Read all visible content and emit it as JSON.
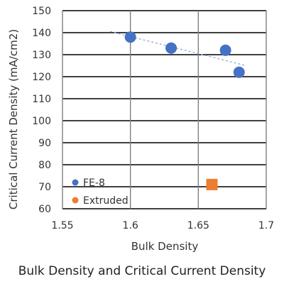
{
  "caption": "Bulk Density and Critical Current Density",
  "chart_data": {
    "type": "scatter",
    "xlabel": "Bulk Density",
    "ylabel": "Critical Current Density (mA/cm2)",
    "xlim": [
      1.55,
      1.7
    ],
    "ylim": [
      60,
      150
    ],
    "x_ticks": [
      "1.55",
      "1.6",
      "1.65",
      "1.7"
    ],
    "y_ticks": [
      "60",
      "70",
      "80",
      "90",
      "100",
      "110",
      "120",
      "130",
      "140",
      "150"
    ],
    "x_tick_values": [
      1.55,
      1.6,
      1.65,
      1.7
    ],
    "y_tick_values": [
      60,
      70,
      80,
      90,
      100,
      110,
      120,
      130,
      140,
      150
    ],
    "grid": true,
    "legend_placement": "bottom-left, inside plot",
    "series": [
      {
        "name": "FE-8",
        "marker": "circle",
        "color": "#4472C4",
        "points": [
          {
            "x": 1.6,
            "y": 138
          },
          {
            "x": 1.63,
            "y": 133
          },
          {
            "x": 1.67,
            "y": 132
          },
          {
            "x": 1.68,
            "y": 122
          }
        ]
      },
      {
        "name": "Extruded",
        "marker": "square",
        "color": "#ED7D31",
        "points": [
          {
            "x": 1.66,
            "y": 71
          }
        ]
      }
    ],
    "trendline": {
      "series": "FE-8",
      "style": "dotted",
      "color": "#8FAADC",
      "x_range": [
        1.585,
        1.685
      ]
    }
  }
}
